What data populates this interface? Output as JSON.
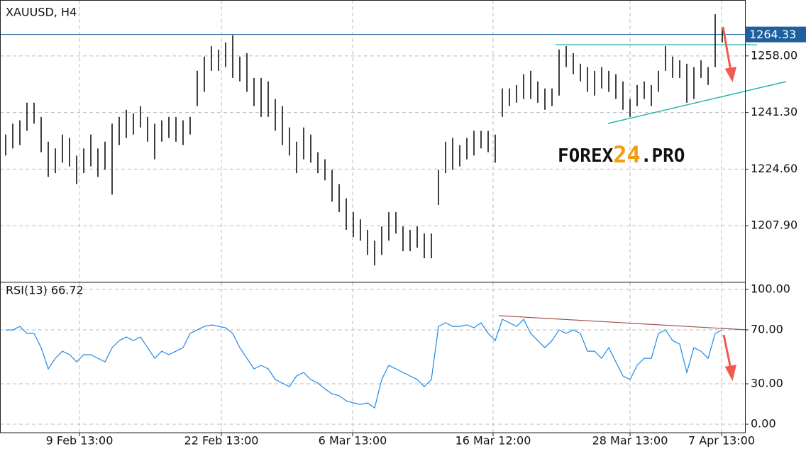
{
  "chart_data": [
    {
      "type": "hilo",
      "title": "XAUUSD, H4",
      "color": "#111111",
      "xlim": [
        -0.8,
        104.2
      ],
      "ylim": [
        1191.2,
        1274.5
      ],
      "yticks": [
        {
          "value": 1258,
          "label": "1258.00"
        },
        {
          "value": 1241.3,
          "label": "1241.30"
        },
        {
          "value": 1224.6,
          "label": "1224.60"
        },
        {
          "value": 1207.9,
          "label": "1207.90"
        }
      ],
      "last_price": {
        "value": 1264.33,
        "label": "1264.33"
      },
      "grid": true,
      "watermark": [
        "FOREX",
        "24",
        ".PRO"
      ],
      "high": [
        1234.8,
        1238.0,
        1239.0,
        1244.2,
        1244.2,
        1240.0,
        1232.7,
        1230.7,
        1234.8,
        1233.8,
        1228.6,
        1230.7,
        1234.8,
        1230.7,
        1232.7,
        1238.0,
        1240.0,
        1242.1,
        1241.1,
        1243.2,
        1240.0,
        1238.0,
        1239.0,
        1240.0,
        1240.0,
        1239.0,
        1240.0,
        1253.6,
        1257.8,
        1260.9,
        1259.9,
        1262.0,
        1264.1,
        1257.8,
        1258.8,
        1251.5,
        1251.5,
        1250.5,
        1245.3,
        1243.2,
        1236.9,
        1232.7,
        1236.9,
        1234.8,
        1229.6,
        1227.5,
        1224.4,
        1220.2,
        1216.0,
        1211.9,
        1209.8,
        1206.7,
        1203.5,
        1207.7,
        1211.9,
        1211.9,
        1207.7,
        1206.7,
        1207.7,
        1205.6,
        1205.6,
        1224.4,
        1232.7,
        1233.8,
        1231.7,
        1233.8,
        1235.9,
        1235.9,
        1235.9,
        1234.8,
        1248.4,
        1248.4,
        1249.4,
        1252.6,
        1253.6,
        1250.5,
        1248.4,
        1248.4,
        1259.9,
        1260.9,
        1258.8,
        1255.7,
        1254.7,
        1253.6,
        1254.7,
        1253.6,
        1252.6,
        1250.5,
        1245.3,
        1249.4,
        1250.5,
        1249.4,
        1253.6,
        1260.9,
        1257.8,
        1256.7,
        1255.7,
        1254.7,
        1256.7,
        1254.7,
        1270.3,
        1266.1
      ],
      "low": [
        1228.6,
        1230.7,
        1231.7,
        1235.9,
        1238.0,
        1229.6,
        1222.3,
        1223.4,
        1226.5,
        1225.4,
        1220.2,
        1223.4,
        1225.4,
        1222.3,
        1224.4,
        1217.1,
        1231.7,
        1233.8,
        1234.8,
        1236.9,
        1232.7,
        1227.5,
        1232.7,
        1233.8,
        1232.7,
        1231.7,
        1234.8,
        1243.2,
        1247.4,
        1253.6,
        1253.6,
        1254.7,
        1251.5,
        1250.5,
        1247.4,
        1243.2,
        1240.0,
        1240.0,
        1235.9,
        1231.7,
        1228.6,
        1223.4,
        1227.5,
        1226.5,
        1223.4,
        1221.3,
        1215.0,
        1211.9,
        1206.7,
        1204.6,
        1203.5,
        1199.3,
        1196.2,
        1199.3,
        1203.5,
        1205.6,
        1200.4,
        1200.4,
        1201.4,
        1198.3,
        1198.3,
        1214.0,
        1223.4,
        1224.4,
        1225.4,
        1227.5,
        1228.6,
        1230.7,
        1229.6,
        1226.5,
        1240.0,
        1243.2,
        1244.2,
        1245.3,
        1245.3,
        1244.2,
        1242.1,
        1243.2,
        1246.3,
        1254.7,
        1252.6,
        1250.5,
        1247.4,
        1246.3,
        1248.4,
        1247.4,
        1245.3,
        1242.1,
        1240.0,
        1243.2,
        1245.3,
        1243.2,
        1247.4,
        1253.6,
        1251.5,
        1251.5,
        1244.2,
        1245.3,
        1251.5,
        1249.4,
        1254.7,
        1262.0
      ]
    },
    {
      "type": "line",
      "title": "RSI(13) 66.72",
      "xlim": [
        -0.8,
        104.2
      ],
      "ylim": [
        -6.3,
        105.3
      ],
      "yticks": [
        {
          "value": 100,
          "label": "100.00"
        },
        {
          "value": 70,
          "label": "70.00"
        },
        {
          "value": 30,
          "label": "30.00"
        },
        {
          "value": 0,
          "label": "0.00"
        }
      ],
      "xticks": [
        {
          "value": 10.4,
          "label": "9 Feb 13:00"
        },
        {
          "value": 30.4,
          "label": "22 Feb 13:00"
        },
        {
          "value": 48.9,
          "label": "6 Mar 13:00"
        },
        {
          "value": 68.7,
          "label": "16 Mar 12:00"
        },
        {
          "value": 88.0,
          "label": "28 Mar 13:00"
        },
        {
          "value": 100.9,
          "label": "7 Apr 13:00"
        }
      ],
      "grid": true,
      "series": [
        {
          "color": "#1e88e5",
          "values": [
            70.0,
            70.0,
            72.6,
            67.4,
            67.4,
            56.8,
            41.1,
            48.9,
            54.2,
            51.6,
            46.3,
            51.6,
            51.6,
            48.9,
            46.3,
            56.8,
            62.1,
            64.7,
            62.1,
            64.7,
            56.8,
            48.9,
            54.2,
            51.6,
            54.2,
            56.8,
            67.4,
            70.0,
            72.6,
            73.7,
            72.6,
            71.6,
            67.4,
            56.8,
            48.9,
            41.1,
            43.7,
            41.1,
            33.2,
            30.5,
            27.9,
            35.8,
            38.4,
            33.2,
            30.5,
            26.3,
            22.6,
            21.1,
            17.4,
            15.8,
            14.7,
            15.8,
            12.1,
            33.2,
            43.7,
            41.1,
            38.4,
            35.8,
            33.2,
            27.9,
            33.2,
            72.6,
            75.3,
            72.6,
            72.6,
            73.7,
            71.6,
            75.3,
            67.4,
            62.1,
            77.9,
            75.3,
            72.6,
            77.9,
            67.4,
            62.1,
            56.8,
            62.1,
            70.0,
            67.4,
            70.0,
            67.4,
            54.2,
            54.2,
            48.9,
            56.8,
            46.3,
            35.8,
            33.2,
            43.7,
            48.9,
            48.9,
            67.4,
            70.0,
            62.1,
            59.5,
            38.4,
            56.8,
            54.2,
            48.9,
            67.4,
            70.0
          ]
        }
      ]
    }
  ]
}
